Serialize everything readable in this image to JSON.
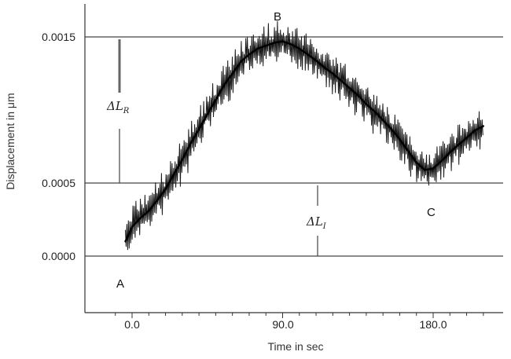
{
  "chart_data": {
    "type": "line",
    "xlabel": "Time in sec",
    "ylabel": "Displacement in μm",
    "xlim": [
      -12,
      215
    ],
    "ylim": [
      -0.00036,
      0.00175
    ],
    "x_ticks": [
      0.0,
      90.0,
      180.0
    ],
    "x_tick_labels": [
      "0.0",
      "90.0",
      "180.0"
    ],
    "y_ticks": [
      0.0,
      0.0005,
      0.0015
    ],
    "y_tick_labels": [
      "0.0000",
      "0.0005",
      "0.0015"
    ],
    "grid": "horizontal at y tick values",
    "series": [
      {
        "x": [
          -4,
          0,
          5,
          10,
          15,
          20,
          25,
          30,
          35,
          40,
          45,
          50,
          55,
          60,
          65,
          70,
          75,
          80,
          85,
          90,
          95,
          100,
          105,
          110,
          115,
          120,
          125,
          130,
          135,
          140,
          145,
          150,
          155,
          160,
          165,
          170,
          175,
          180,
          185,
          190,
          195,
          200,
          205,
          210
        ],
        "y": [
          0.0001,
          0.0002,
          0.00026,
          0.00031,
          0.00038,
          0.00046,
          0.00056,
          0.00066,
          0.00077,
          0.00087,
          0.00097,
          0.00107,
          0.00117,
          0.00125,
          0.00133,
          0.00138,
          0.00142,
          0.00144,
          0.00146,
          0.00147,
          0.00145,
          0.00142,
          0.00138,
          0.00134,
          0.00129,
          0.00125,
          0.0012,
          0.00115,
          0.0011,
          0.00104,
          0.00099,
          0.00093,
          0.00087,
          0.0008,
          0.00072,
          0.00064,
          0.00059,
          0.0006,
          0.00065,
          0.00071,
          0.00076,
          0.00081,
          0.00086,
          0.00089
        ]
      }
    ],
    "annotations": {
      "A": "A",
      "B": "B",
      "C": "C",
      "dL_R": {
        "base": "ΔL",
        "sub": "R"
      },
      "dL_I": {
        "base": "ΔL",
        "sub": "I"
      }
    }
  }
}
